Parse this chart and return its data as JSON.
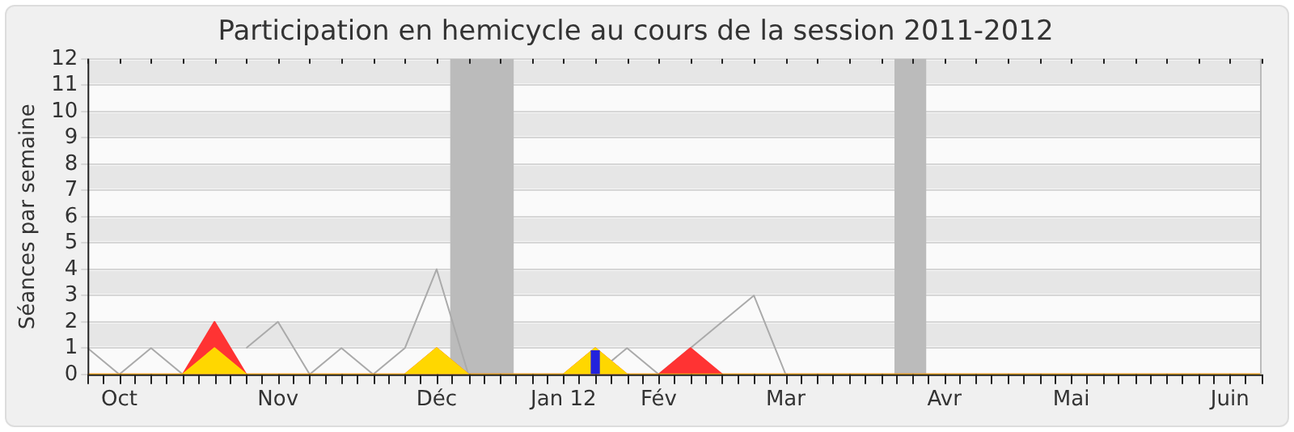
{
  "chart_data": {
    "type": "line",
    "title": "Participation en hemicycle au cours de la session 2011-2012",
    "ylabel": "Séances par semaine",
    "x": [
      "2011-09-29",
      "2011-10-06",
      "2011-10-13",
      "2011-10-20",
      "2011-10-27",
      "2011-11-03",
      "2011-11-10",
      "2011-11-17",
      "2011-11-24",
      "2011-12-01",
      "2011-12-08",
      "2011-12-15",
      "2011-12-22",
      "2011-12-29",
      "2012-01-05",
      "2012-01-12",
      "2012-01-19",
      "2012-01-26",
      "2012-02-02",
      "2012-02-09",
      "2012-02-16",
      "2012-02-23",
      "2012-03-01",
      "2012-03-08",
      "2012-03-15",
      "2012-03-22",
      "2012-03-29",
      "2012-04-05",
      "2012-04-12",
      "2012-04-19",
      "2012-04-26",
      "2012-05-03",
      "2012-05-10",
      "2012-05-17",
      "2012-05-24",
      "2012-05-31",
      "2012-06-07",
      "2012-06-14"
    ],
    "series": [
      {
        "color": "#aaaaaa",
        "values": [
          1,
          0,
          1,
          0,
          null,
          1,
          2,
          0,
          1,
          0,
          1,
          4,
          0,
          0,
          0,
          0,
          0,
          1,
          0,
          1,
          2,
          3,
          0,
          0,
          0,
          0,
          0,
          0,
          0,
          0,
          0,
          0,
          0,
          0,
          0,
          0,
          0,
          0
        ]
      },
      {
        "type": "area",
        "color": "#ff3333",
        "values": [
          0,
          0,
          0,
          0,
          2,
          0,
          0,
          0,
          0,
          0,
          0,
          1,
          0,
          0,
          0,
          0,
          1,
          0,
          0,
          1,
          0,
          0,
          0,
          0,
          0,
          0,
          0,
          0,
          0,
          0,
          0,
          0,
          0,
          0,
          0,
          0,
          0,
          0
        ]
      },
      {
        "type": "area",
        "color": "#ffd700",
        "values": [
          0,
          0,
          0,
          0,
          1,
          0,
          0,
          0,
          0,
          0,
          0,
          1,
          0,
          0,
          0,
          0,
          1,
          0,
          0,
          0,
          0,
          0,
          0,
          0,
          0,
          0,
          0,
          0,
          0,
          0,
          0,
          0,
          0,
          0,
          0,
          0,
          0,
          0
        ]
      },
      {
        "type": "bar",
        "color": "#2222dd",
        "values": [
          null,
          null,
          null,
          null,
          null,
          null,
          null,
          null,
          null,
          null,
          null,
          null,
          null,
          null,
          null,
          null,
          0.9,
          null,
          null,
          null,
          null,
          null,
          null,
          null,
          null,
          null,
          null,
          null,
          null,
          null,
          null,
          null,
          null,
          null,
          null,
          null,
          null,
          null
        ]
      }
    ],
    "xlim": [
      "2011-09-29",
      "2012-06-14"
    ],
    "xticks": [
      {
        "value": "2011-09-29",
        "label": null
      },
      {
        "value": "2011-10-06",
        "label": "Oct"
      },
      {
        "value": "2011-10-13",
        "label": null
      },
      {
        "value": "2011-10-20",
        "label": null
      },
      {
        "value": "2011-10-27",
        "label": null
      },
      {
        "value": "2011-11-03",
        "label": null
      },
      {
        "value": "2011-11-10",
        "label": "Nov"
      },
      {
        "value": "2011-11-17",
        "label": null
      },
      {
        "value": "2011-11-24",
        "label": null
      },
      {
        "value": "2011-12-01",
        "label": null
      },
      {
        "value": "2011-12-08",
        "label": null
      },
      {
        "value": "2011-12-15",
        "label": "Déc"
      },
      {
        "value": "2011-12-22",
        "label": null
      },
      {
        "value": "2011-12-29",
        "label": null
      },
      {
        "value": "2012-01-05",
        "label": null
      },
      {
        "value": "2012-01-12",
        "label": "Jan 12"
      },
      {
        "value": "2012-01-19",
        "label": null
      },
      {
        "value": "2012-01-26",
        "label": null
      },
      {
        "value": "2012-02-02",
        "label": "Fév"
      },
      {
        "value": "2012-02-09",
        "label": null
      },
      {
        "value": "2012-02-16",
        "label": null
      },
      {
        "value": "2012-02-23",
        "label": null
      },
      {
        "value": "2012-03-01",
        "label": "Mar"
      },
      {
        "value": "2012-03-08",
        "label": null
      },
      {
        "value": "2012-03-15",
        "label": null
      },
      {
        "value": "2012-03-22",
        "label": null
      },
      {
        "value": "2012-03-29",
        "label": null
      },
      {
        "value": "2012-04-05",
        "label": "Avr"
      },
      {
        "value": "2012-04-12",
        "label": null
      },
      {
        "value": "2012-04-19",
        "label": null
      },
      {
        "value": "2012-04-26",
        "label": null
      },
      {
        "value": "2012-05-03",
        "label": "Mai"
      },
      {
        "value": "2012-05-10",
        "label": null
      },
      {
        "value": "2012-05-17",
        "label": null
      },
      {
        "value": "2012-05-24",
        "label": null
      },
      {
        "value": "2012-05-31",
        "label": null
      },
      {
        "value": "2012-06-07",
        "label": "Juin"
      },
      {
        "value": "2012-06-14",
        "label": null
      }
    ],
    "ylim": [
      0,
      12
    ],
    "yticks": [
      0,
      1,
      2,
      3,
      4,
      5,
      6,
      7,
      8,
      9,
      10,
      11,
      12
    ],
    "bands": [
      {
        "axis": "x",
        "from": "2011-12-18",
        "to": "2012-01-01",
        "color": "#bbbbbb"
      },
      {
        "axis": "x",
        "from": "2012-03-25",
        "to": "2012-04-01",
        "color": "#bbbbbb"
      }
    ],
    "grid": "y",
    "legend": false,
    "marker": "none",
    "line_style": "solid"
  }
}
